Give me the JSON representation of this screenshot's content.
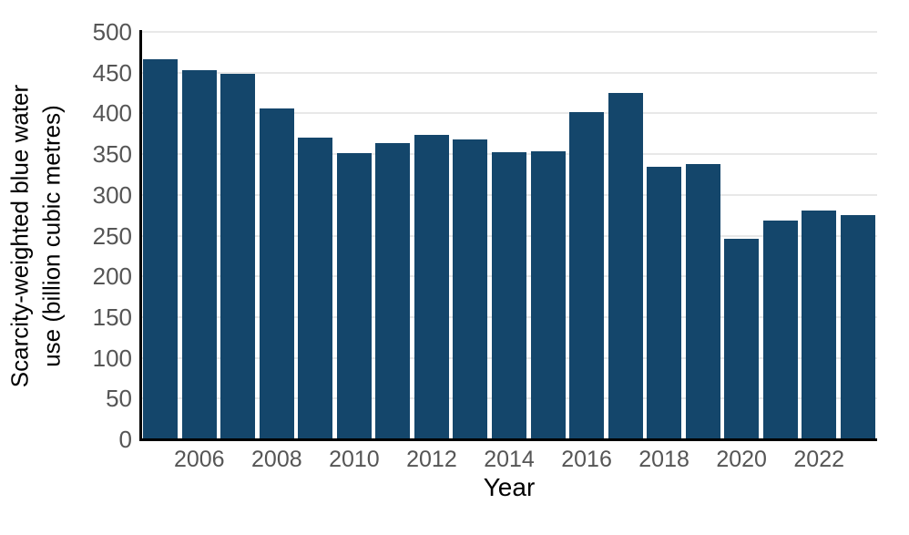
{
  "chart_data": {
    "type": "bar",
    "title": "",
    "xlabel": "Year",
    "ylabel": "Scarcity-weighted blue water use (billion cubic metres)",
    "ylabel_lines": [
      "Scarcity-weighted blue water",
      "use (billion cubic metres)"
    ],
    "unit": "billion cubic metres",
    "categories": [
      2005,
      2006,
      2007,
      2008,
      2009,
      2010,
      2011,
      2012,
      2013,
      2014,
      2015,
      2016,
      2017,
      2018,
      2019,
      2020,
      2021,
      2022,
      2023
    ],
    "values": [
      466,
      453,
      449,
      406,
      370,
      351,
      364,
      374,
      368,
      352,
      353,
      402,
      425,
      334,
      338,
      246,
      268,
      281,
      275
    ],
    "ylim": [
      0,
      500
    ],
    "yticks": [
      0,
      50,
      100,
      150,
      200,
      250,
      300,
      350,
      400,
      450,
      500
    ],
    "xticks": [
      2006,
      2008,
      2010,
      2012,
      2014,
      2016,
      2018,
      2020,
      2022
    ],
    "grid": true,
    "legend": "none",
    "colors": {
      "bar": "#14466B",
      "grid": "#e8e8e8",
      "axis": "#000000",
      "tick_label": "#555555",
      "axis_title": "#000000",
      "background": "#ffffff"
    }
  }
}
